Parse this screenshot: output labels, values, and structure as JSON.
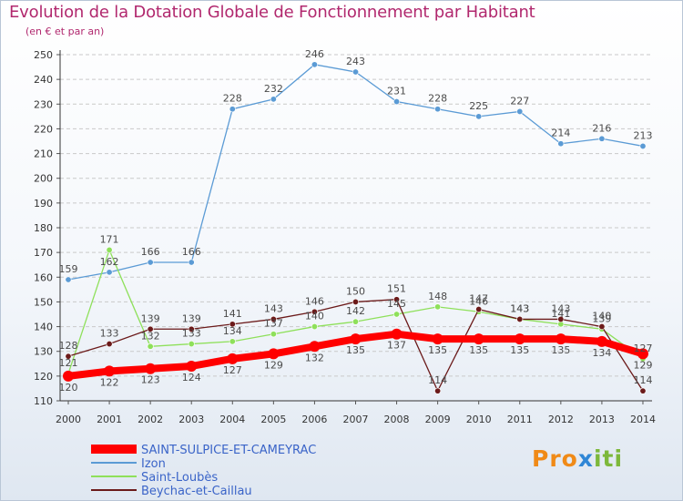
{
  "header": {
    "title": "Evolution de la Dotation Globale de Fonctionnement par Habitant",
    "subtitle": "(en € et par an)"
  },
  "brand": {
    "part1": "Pro",
    "part2": "x",
    "part3": "iti"
  },
  "chart_data": {
    "type": "line",
    "title": "Evolution de la Dotation Globale de Fonctionnement par Habitant",
    "subtitle": "(en € et par an)",
    "xlabel": "",
    "ylabel": "",
    "x": [
      "2000",
      "2001",
      "2002",
      "2003",
      "2004",
      "2005",
      "2006",
      "2007",
      "2008",
      "2009",
      "2010",
      "2011",
      "2012",
      "2013",
      "2014"
    ],
    "ylim": [
      110,
      250
    ],
    "yticks": [
      110,
      120,
      130,
      140,
      150,
      160,
      170,
      180,
      190,
      200,
      210,
      220,
      230,
      240,
      250
    ],
    "grid": "horizontal dashed",
    "legend": "bottom-left",
    "series": [
      {
        "name": "SAINT-SULPICE-ET-CAMEYRAC",
        "color": "#ff0000",
        "emphasis": true,
        "values": [
          120,
          122,
          123,
          124,
          127,
          129,
          132,
          135,
          137,
          135,
          135,
          135,
          135,
          134,
          129
        ]
      },
      {
        "name": "Izon",
        "color": "#5b9bd5",
        "values": [
          159,
          162,
          166,
          166,
          228,
          232,
          246,
          243,
          231,
          228,
          225,
          227,
          214,
          216,
          213
        ]
      },
      {
        "name": "Saint-Loubès",
        "color": "#8ee05a",
        "values": [
          121,
          171,
          132,
          133,
          134,
          137,
          140,
          142,
          145,
          148,
          146,
          143,
          141,
          139,
          127
        ]
      },
      {
        "name": "Beychac-et-Caillau",
        "color": "#6b1a1a",
        "values": [
          128,
          133,
          139,
          139,
          141,
          143,
          146,
          150,
          151,
          114,
          147,
          143,
          143,
          140,
          114
        ]
      }
    ]
  }
}
